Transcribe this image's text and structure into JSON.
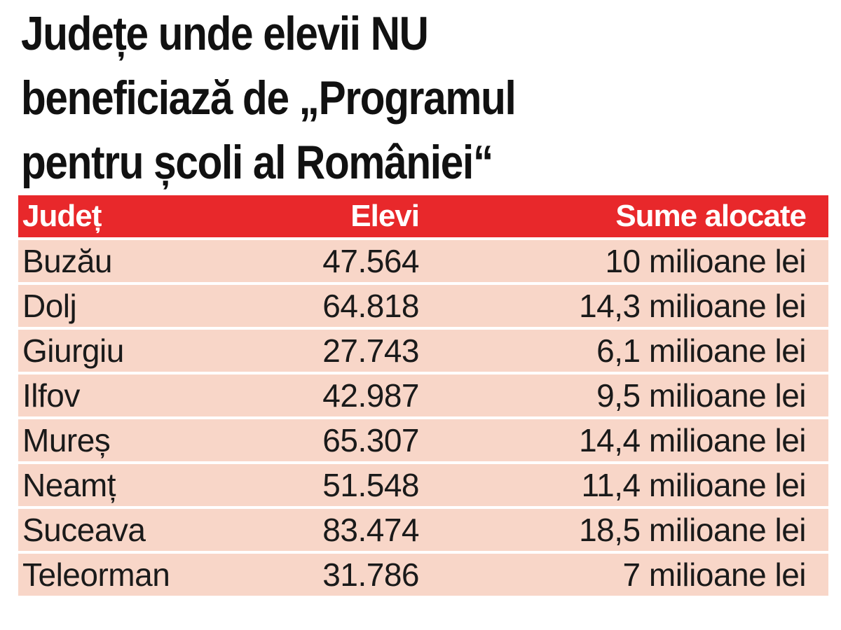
{
  "title": {
    "lines": [
      "Județe unde elevii NU",
      "beneficiază de „Programul",
      "pentru școli al României“"
    ]
  },
  "table": {
    "headers": {
      "county": "Județ",
      "students": "Elevi",
      "sums": "Sume alocate"
    },
    "rows": [
      {
        "county": "Buzău",
        "students": "47.564",
        "sums": "10 milioane lei"
      },
      {
        "county": "Dolj",
        "students": "64.818",
        "sums": "14,3 milioane lei"
      },
      {
        "county": "Giurgiu",
        "students": "27.743",
        "sums": "6,1 milioane lei"
      },
      {
        "county": "Ilfov",
        "students": "42.987",
        "sums": "9,5 milioane lei"
      },
      {
        "county": "Mureș",
        "students": "65.307",
        "sums": "14,4 milioane lei"
      },
      {
        "county": "Neamț",
        "students": "51.548",
        "sums": "11,4 milioane lei"
      },
      {
        "county": "Suceava",
        "students": "83.474",
        "sums": "18,5 milioane lei"
      },
      {
        "county": "Teleorman",
        "students": "31.786",
        "sums": "7 milioane lei"
      }
    ]
  },
  "colors": {
    "header_bg": "#e8282b",
    "row_bg": "#f8d6c8",
    "title_text": "#111111"
  }
}
